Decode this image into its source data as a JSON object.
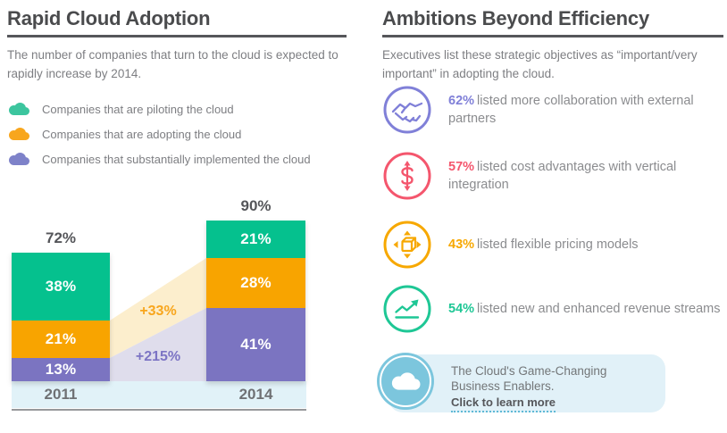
{
  "left": {
    "title": "Rapid Cloud Adoption",
    "subtitle": "The number of companies that turn to the cloud is expected to rapidly increase by 2014.",
    "legend": [
      {
        "label": "Companies that are piloting the cloud",
        "color": "#3cc59e"
      },
      {
        "label": "Companies that are adopting the cloud",
        "color": "#f8a61d"
      },
      {
        "label": "Companies that substantially implemented the cloud",
        "color": "#7e82c9"
      }
    ],
    "chart_data": {
      "type": "bar",
      "stacked": true,
      "unit": "%",
      "categories": [
        "2011",
        "2014"
      ],
      "series": [
        {
          "name": "Companies that substantially implemented the cloud",
          "color": "#7b74c1",
          "values": [
            13,
            41
          ]
        },
        {
          "name": "Companies that are adopting the cloud",
          "color": "#f8a400",
          "values": [
            21,
            28
          ]
        },
        {
          "name": "Companies that are piloting the cloud",
          "color": "#05c18e",
          "values": [
            38,
            21
          ]
        }
      ],
      "totals": [
        "72%",
        "90%"
      ],
      "growth": [
        {
          "label": "+33%",
          "between": "adopting segments 2011-2014",
          "color": "#f8a61d",
          "band_color": "#fceecd"
        },
        {
          "label": "+215%",
          "between": "implemented segments 2011-2014",
          "color": "#7c74c4",
          "band_color": "#dfddec"
        }
      ],
      "ylim": [
        0,
        100
      ],
      "grid": false,
      "axis_strip_color": "#e1f2f8",
      "axis_line_color": "#97989b",
      "legend_position": "above-chart"
    }
  },
  "right": {
    "title": "Ambitions Beyond Efficiency",
    "subtitle": "Executives list these strategic objectives as “important/very important” in adopting the cloud.",
    "items": [
      {
        "icon": "handshake-icon",
        "accent": "#8080d8",
        "percent": "62%",
        "text": "listed more collaboration with external partners"
      },
      {
        "icon": "dollar-growth-icon",
        "accent": "#f4566d",
        "percent": "57%",
        "text": "listed cost advantages with vertical integration"
      },
      {
        "icon": "flexible-pricing-icon",
        "accent": "#f7a800",
        "percent": "43%",
        "text": "listed flexible pricing models"
      },
      {
        "icon": "revenue-trend-icon",
        "accent": "#1ec795",
        "percent": "54%",
        "text": "listed new and enhanced revenue streams"
      }
    ],
    "callout": {
      "icon": "cloud-icon",
      "circle_color": "#7cc6dd",
      "bg_color": "#e1f1f8",
      "line1": "The Cloud's Game-Changing",
      "line2": "Business Enablers.",
      "link_label": "Click to learn more"
    }
  }
}
